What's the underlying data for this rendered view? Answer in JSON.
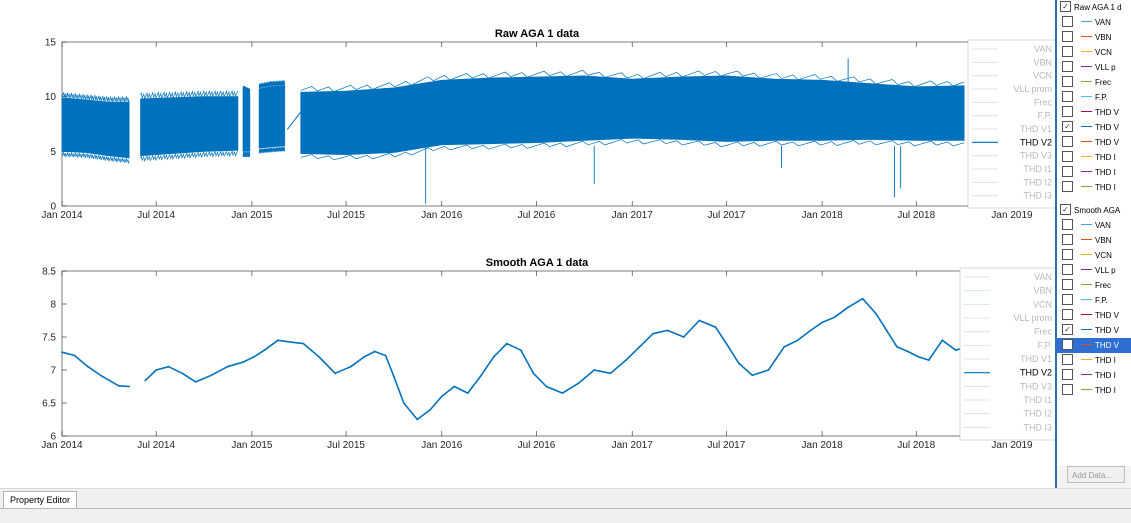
{
  "chart_data": [
    {
      "type": "line",
      "title": "Raw AGA 1 data",
      "x_range": [
        "2014-01-01",
        "2019-01-01"
      ],
      "ylim": [
        0,
        15
      ],
      "y_ticks": [
        "0",
        "5",
        "10",
        "15"
      ],
      "x_ticks": [
        "Jan 2014",
        "Jul 2014",
        "Jan 2015",
        "Jul 2015",
        "Jan 2016",
        "Jul 2016",
        "Jan 2017",
        "Jul 2017",
        "Jan 2018",
        "Jul 2018",
        "Jan 2019"
      ],
      "legend": [
        "VAN",
        "VBN",
        "VCN",
        "VLL prom",
        "Frec",
        "F.P.",
        "THD V1",
        "THD V2",
        "THD V3",
        "THD I1",
        "THD I2",
        "THD I3"
      ],
      "active_series": "THD V2",
      "series_color": "#0072bd",
      "segments": [
        {
          "x": [
            "2014-01-01",
            "2014-02-15",
            "2014-04-01",
            "2014-05-10"
          ],
          "low": [
            5.0,
            4.9,
            4.6,
            4.4
          ],
          "high": [
            9.9,
            9.7,
            9.5,
            9.5
          ]
        },
        {
          "x": [
            "2014-06-01",
            "2014-08-01",
            "2014-10-01",
            "2014-12-05"
          ],
          "low": [
            4.6,
            4.8,
            5.0,
            5.1
          ],
          "high": [
            9.8,
            9.9,
            10.0,
            10.0
          ]
        },
        {
          "x": [
            "2014-12-15",
            "2014-12-28"
          ],
          "low": [
            5.0,
            5.0
          ],
          "high": [
            10.5,
            10.2
          ]
        },
        {
          "x": [
            "2015-01-15",
            "2015-02-05",
            "2015-03-05"
          ],
          "low": [
            5.3,
            5.4,
            5.5
          ],
          "high": [
            10.7,
            10.9,
            11.0
          ]
        },
        {
          "x": [
            "2015-04-05",
            "2015-07-01",
            "2015-10-01",
            "2016-01-01",
            "2016-04-01",
            "2016-07-01",
            "2016-10-01",
            "2017-01-01",
            "2017-04-01",
            "2017-07-01",
            "2017-10-01",
            "2018-01-01",
            "2018-04-01",
            "2018-07-01",
            "2018-10-01"
          ],
          "low": [
            4.8,
            4.7,
            4.9,
            5.6,
            5.7,
            5.8,
            6.0,
            6.2,
            6.1,
            5.9,
            6.0,
            6.0,
            6.1,
            6.0,
            6.0
          ],
          "high": [
            10.4,
            10.5,
            10.8,
            11.5,
            11.7,
            11.8,
            11.9,
            11.6,
            11.8,
            11.9,
            11.6,
            11.5,
            11.2,
            10.9,
            11.0
          ]
        }
      ],
      "bridge": [
        {
          "x": "2015-03-10",
          "y": 7.0
        },
        {
          "x": "2015-04-05",
          "y": 8.6
        }
      ],
      "spikes": [
        {
          "x": "2015-12-01",
          "y": 0.2
        },
        {
          "x": "2016-10-20",
          "y": 2.0
        },
        {
          "x": "2017-10-15",
          "y": 3.5
        },
        {
          "x": "2018-05-20",
          "y": 0.8
        },
        {
          "x": "2018-06-01",
          "y": 1.6
        },
        {
          "x": "2018-02-20",
          "y": 13.5
        }
      ]
    },
    {
      "type": "line",
      "title": "Smooth AGA 1 data",
      "x_range": [
        "2014-01-01",
        "2019-01-01"
      ],
      "ylim": [
        6,
        8.5
      ],
      "y_ticks": [
        "6",
        "6.5",
        "7",
        "7.5",
        "8",
        "8.5"
      ],
      "x_ticks": [
        "Jan 2014",
        "Jul 2014",
        "Jan 2015",
        "Jul 2015",
        "Jan 2016",
        "Jul 2016",
        "Jan 2017",
        "Jul 2017",
        "Jan 2018",
        "Jul 2018",
        "Jan 2019"
      ],
      "legend": [
        "VAN",
        "VBN",
        "VCN",
        "VLL prom",
        "Frec",
        "F.P.",
        "THD V1",
        "THD V2",
        "THD V3",
        "THD I1",
        "THD I2",
        "THD I3"
      ],
      "active_series": "THD V2",
      "series_color": "#0072bd",
      "series": [
        {
          "x": [
            "2014-01-01",
            "2014-01-25",
            "2014-02-20",
            "2014-03-20",
            "2014-04-20",
            "2014-05-10"
          ],
          "y": [
            7.27,
            7.22,
            7.05,
            6.9,
            6.76,
            6.75
          ]
        },
        {
          "x": [
            "2014-06-10",
            "2014-07-01",
            "2014-07-25",
            "2014-08-20",
            "2014-09-15",
            "2014-10-15",
            "2014-11-15",
            "2014-12-15",
            "2015-01-05",
            "2015-01-25",
            "2015-02-20",
            "2015-03-20",
            "2015-04-10",
            "2015-05-10",
            "2015-06-10",
            "2015-07-10",
            "2015-08-05",
            "2015-08-25",
            "2015-09-15",
            "2015-10-01",
            "2015-10-20",
            "2015-11-15",
            "2015-12-10",
            "2016-01-01",
            "2016-01-25",
            "2016-02-20",
            "2016-03-15",
            "2016-04-10",
            "2016-05-05",
            "2016-06-01",
            "2016-06-25",
            "2016-07-20",
            "2016-08-20",
            "2016-09-20",
            "2016-10-20",
            "2016-11-20",
            "2016-12-20",
            "2017-01-15",
            "2017-02-10",
            "2017-03-10",
            "2017-04-10",
            "2017-05-10",
            "2017-06-10",
            "2017-07-01",
            "2017-07-25",
            "2017-08-20",
            "2017-09-20",
            "2017-10-20",
            "2017-11-15",
            "2017-12-10",
            "2018-01-01",
            "2018-01-25",
            "2018-02-20",
            "2018-03-20",
            "2018-04-15",
            "2018-05-05",
            "2018-05-25",
            "2018-06-15",
            "2018-07-05",
            "2018-07-25",
            "2018-08-20",
            "2018-09-15",
            "2018-10-05",
            "2018-10-20"
          ],
          "y": [
            6.84,
            7.0,
            7.05,
            6.95,
            6.82,
            6.92,
            7.05,
            7.12,
            7.2,
            7.3,
            7.45,
            7.42,
            7.4,
            7.2,
            6.95,
            7.05,
            7.2,
            7.28,
            7.22,
            6.9,
            6.5,
            6.25,
            6.4,
            6.6,
            6.75,
            6.65,
            6.9,
            7.2,
            7.4,
            7.3,
            6.95,
            6.75,
            6.65,
            6.8,
            7.0,
            6.95,
            7.15,
            7.35,
            7.55,
            7.6,
            7.5,
            7.75,
            7.65,
            7.4,
            7.1,
            6.92,
            7.0,
            7.35,
            7.45,
            7.6,
            7.72,
            7.8,
            7.95,
            8.08,
            7.85,
            7.6,
            7.35,
            7.28,
            7.2,
            7.15,
            7.45,
            7.3,
            7.35,
            7.48
          ]
        }
      ]
    }
  ],
  "browser": {
    "groups": [
      {
        "label": "Raw AGA 1 d",
        "checked": true,
        "items": [
          {
            "label": "VAN",
            "color": "#4aa0d8",
            "checked": false
          },
          {
            "label": "VBN",
            "color": "#d95319",
            "checked": false
          },
          {
            "label": "VCN",
            "color": "#edb120",
            "checked": false
          },
          {
            "label": "VLL p",
            "color": "#7e2f8e",
            "checked": false
          },
          {
            "label": "Frec",
            "color": "#77ac30",
            "checked": false
          },
          {
            "label": "F.P.",
            "color": "#4dbeee",
            "checked": false
          },
          {
            "label": "THD V",
            "color": "#a2142f",
            "checked": false
          },
          {
            "label": "THD V",
            "color": "#0072bd",
            "checked": true
          },
          {
            "label": "THD V",
            "color": "#d95319",
            "checked": false
          },
          {
            "label": "THD I",
            "color": "#edb120",
            "checked": false
          },
          {
            "label": "THD I",
            "color": "#7e2f8e",
            "checked": false
          },
          {
            "label": "THD I",
            "color": "#77ac30",
            "checked": false
          }
        ]
      },
      {
        "label": "Smooth AGA",
        "checked": true,
        "items": [
          {
            "label": "VAN",
            "color": "#4aa0d8",
            "checked": false
          },
          {
            "label": "VBN",
            "color": "#d95319",
            "checked": false
          },
          {
            "label": "VCN",
            "color": "#edb120",
            "checked": false
          },
          {
            "label": "VLL p",
            "color": "#7e2f8e",
            "checked": false
          },
          {
            "label": "Frec",
            "color": "#77ac30",
            "checked": false
          },
          {
            "label": "F.P.",
            "color": "#4dbeee",
            "checked": false
          },
          {
            "label": "THD V",
            "color": "#a2142f",
            "checked": false
          },
          {
            "label": "THD V",
            "color": "#0072bd",
            "checked": true
          },
          {
            "label": "THD V",
            "color": "#d95319",
            "checked": false,
            "selected": true
          },
          {
            "label": "THD I",
            "color": "#edb120",
            "checked": false
          },
          {
            "label": "THD I",
            "color": "#7e2f8e",
            "checked": false
          },
          {
            "label": "THD I",
            "color": "#77ac30",
            "checked": false
          }
        ]
      }
    ],
    "add_data_label": "Add Data..."
  },
  "tabs": {
    "property_editor": "Property Editor"
  }
}
